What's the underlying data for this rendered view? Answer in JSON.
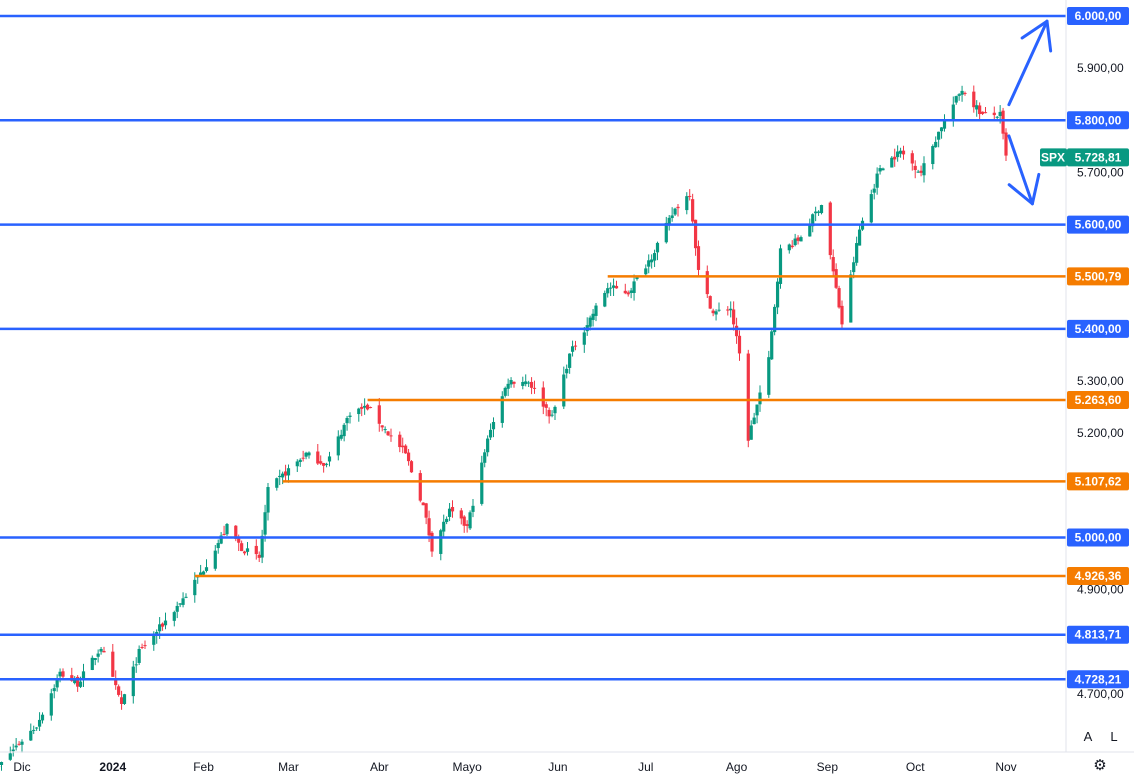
{
  "chart_data": {
    "type": "candlestick",
    "symbol": "SPX",
    "last_price_label": "5.728,81",
    "last_price": 5728.81,
    "y_range": [
      4620,
      6010
    ],
    "y_ticks": [
      "4.700,00",
      "4.900,00",
      "5.200,00",
      "5.300,00",
      "5.700,00",
      "5.900,00"
    ],
    "y_tick_values": [
      4700,
      4900,
      5200,
      5300,
      5700,
      5900
    ],
    "x_ticks": [
      {
        "label": "Dic",
        "bold": false,
        "date": "2023-12-01"
      },
      {
        "label": "2024",
        "bold": true,
        "date": "2024-01-01"
      },
      {
        "label": "Feb",
        "bold": false,
        "date": "2024-02-01"
      },
      {
        "label": "Mar",
        "bold": false,
        "date": "2024-03-01"
      },
      {
        "label": "Abr",
        "bold": false,
        "date": "2024-04-01"
      },
      {
        "label": "Mayo",
        "bold": false,
        "date": "2024-05-01"
      },
      {
        "label": "Jun",
        "bold": false,
        "date": "2024-06-01"
      },
      {
        "label": "Jul",
        "bold": false,
        "date": "2024-07-01"
      },
      {
        "label": "Ago",
        "bold": false,
        "date": "2024-08-01"
      },
      {
        "label": "Sep",
        "bold": false,
        "date": "2024-09-01"
      },
      {
        "label": "Oct",
        "bold": false,
        "date": "2024-10-01"
      },
      {
        "label": "Nov",
        "bold": false,
        "date": "2024-11-01"
      }
    ],
    "levels": [
      {
        "value": 6000.0,
        "label": "6.000,00",
        "color": "#2962ff",
        "start": "2023-11-20"
      },
      {
        "value": 5800.0,
        "label": "5.800,00",
        "color": "#2962ff",
        "start": "2023-11-20"
      },
      {
        "value": 5600.0,
        "label": "5.600,00",
        "color": "#2962ff",
        "start": "2023-11-20"
      },
      {
        "value": 5500.79,
        "label": "5.500,79",
        "color": "#f57c00",
        "start": "2024-06-18"
      },
      {
        "value": 5400.0,
        "label": "5.400,00",
        "color": "#2962ff",
        "start": "2023-11-20"
      },
      {
        "value": 5263.6,
        "label": "5.263,60",
        "color": "#f57c00",
        "start": "2024-03-28"
      },
      {
        "value": 5107.62,
        "label": "5.107,62",
        "color": "#f57c00",
        "start": "2024-02-28"
      },
      {
        "value": 5000.0,
        "label": "5.000,00",
        "color": "#2962ff",
        "start": "2023-11-20"
      },
      {
        "value": 4926.36,
        "label": "4.926,36",
        "color": "#f57c00",
        "start": "2024-01-29"
      },
      {
        "value": 4813.71,
        "label": "4.813,71",
        "color": "#2962ff",
        "start": "2023-11-20"
      },
      {
        "value": 4728.21,
        "label": "4.728,21",
        "color": "#2962ff",
        "start": "2023-11-20"
      }
    ],
    "anchors": [
      [
        "2023-11-20",
        4540
      ],
      [
        "2023-11-29",
        4600
      ],
      [
        "2023-12-06",
        4640
      ],
      [
        "2023-12-14",
        4740
      ],
      [
        "2023-12-20",
        4720
      ],
      [
        "2023-12-28",
        4790
      ],
      [
        "2024-01-04",
        4680
      ],
      [
        "2024-01-10",
        4780
      ],
      [
        "2024-01-19",
        4840
      ],
      [
        "2024-01-26",
        4890
      ],
      [
        "2024-02-01",
        4940
      ],
      [
        "2024-02-09",
        5020
      ],
      [
        "2024-02-14",
        4980
      ],
      [
        "2024-02-20",
        4960
      ],
      [
        "2024-02-23",
        5090
      ],
      [
        "2024-03-01",
        5130
      ],
      [
        "2024-03-07",
        5160
      ],
      [
        "2024-03-14",
        5140
      ],
      [
        "2024-03-22",
        5240
      ],
      [
        "2024-03-28",
        5250
      ],
      [
        "2024-04-04",
        5200
      ],
      [
        "2024-04-10",
        5160
      ],
      [
        "2024-04-16",
        5060
      ],
      [
        "2024-04-19",
        4980
      ],
      [
        "2024-04-25",
        5050
      ],
      [
        "2024-05-01",
        5020
      ],
      [
        "2024-05-09",
        5210
      ],
      [
        "2024-05-15",
        5300
      ],
      [
        "2024-05-22",
        5300
      ],
      [
        "2024-05-30",
        5230
      ],
      [
        "2024-06-05",
        5350
      ],
      [
        "2024-06-12",
        5420
      ],
      [
        "2024-06-18",
        5480
      ],
      [
        "2024-06-25",
        5470
      ],
      [
        "2024-07-03",
        5540
      ],
      [
        "2024-07-11",
        5630
      ],
      [
        "2024-07-16",
        5660
      ],
      [
        "2024-07-19",
        5510
      ],
      [
        "2024-07-24",
        5430
      ],
      [
        "2024-07-30",
        5440
      ],
      [
        "2024-08-02",
        5350
      ],
      [
        "2024-08-05",
        5190
      ],
      [
        "2024-08-12",
        5340
      ],
      [
        "2024-08-16",
        5550
      ],
      [
        "2024-08-22",
        5570
      ],
      [
        "2024-08-30",
        5640
      ],
      [
        "2024-09-06",
        5410
      ],
      [
        "2024-09-12",
        5590
      ],
      [
        "2024-09-19",
        5710
      ],
      [
        "2024-09-26",
        5740
      ],
      [
        "2024-10-03",
        5700
      ],
      [
        "2024-10-10",
        5790
      ],
      [
        "2024-10-17",
        5860
      ],
      [
        "2024-10-24",
        5810
      ],
      [
        "2024-10-30",
        5810
      ],
      [
        "2024-11-01",
        5728.81
      ]
    ],
    "candle_start": "2023-11-20",
    "candle_end": "2024-11-01",
    "arrows": [
      {
        "from": [
          "2024-11-02",
          5830
        ],
        "to": [
          "2024-11-15",
          5990
        ]
      },
      {
        "from": [
          "2024-11-02",
          5770
        ],
        "to": [
          "2024-11-10",
          5640
        ]
      }
    ],
    "up_color": "#089981",
    "down_color": "#f23645"
  },
  "buttons": {
    "auto": "A",
    "log": "L",
    "settings": "⚙"
  }
}
